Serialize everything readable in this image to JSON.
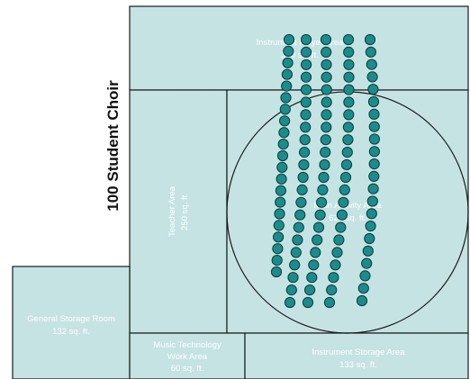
{
  "title": "100 Student Choir",
  "rooms": {
    "instrument_area": {
      "name": "Instrument Player Area",
      "size": "300 sq. ft."
    },
    "main_activity": {
      "name": "Main Activity Area",
      "size": "625 sq. ft."
    },
    "teacher_area": {
      "name": "Teacher Area",
      "size": "250 sq. ft."
    },
    "general_storage": {
      "name": "General Storage Room",
      "size": "132 sq. ft."
    },
    "music_tech": {
      "name_line1": "Music Technology",
      "name_line2": "Work Area",
      "size": "60 sq. ft."
    },
    "instrument_storage": {
      "name": "Instrument Storage Area",
      "size": "133 sq. ft."
    }
  },
  "colors": {
    "room_fill": "#c5e3e3",
    "seat_fill": "#1a8c8c",
    "outline": "#1a1a1a"
  },
  "seating": {
    "rows": 5,
    "seat_icon": "circle"
  }
}
